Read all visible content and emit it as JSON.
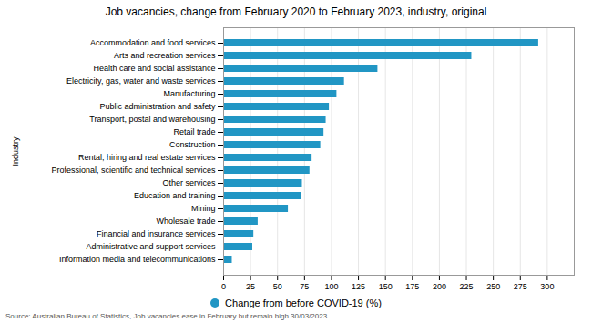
{
  "chart_data": {
    "type": "bar",
    "orientation": "horizontal",
    "title": "Job vacancies, change from February 2020 to February 2023, industry, original",
    "ylabel": "Industry",
    "categories": [
      "Accommodation and food services",
      "Arts and recreation services",
      "Health care and social assistance",
      "Electricity, gas, water and waste services",
      "Manufacturing",
      "Public administration and safety",
      "Transport, postal and warehousing",
      "Retail trade",
      "Construction",
      "Rental, hiring and real estate services",
      "Professional, scientific and technical services",
      "Other services",
      "Education and training",
      "Mining",
      "Wholesale trade",
      "Financial and insurance services",
      "Administrative and support services",
      "Information media and telecommunications"
    ],
    "series": [
      {
        "name": "Change from before COVID-19 (%)",
        "color": "#2196C4",
        "values": [
          292,
          230,
          143,
          112,
          105,
          98,
          95,
          93,
          90,
          82,
          80,
          73,
          72,
          60,
          32,
          28,
          27,
          8
        ]
      }
    ],
    "xlim": [
      0,
      325
    ],
    "xticks": [
      0,
      25,
      50,
      75,
      100,
      125,
      150,
      175,
      200,
      225,
      250,
      275,
      300
    ],
    "grid": true,
    "legend": "bottom",
    "annotations": [
      "Source: Australian Bureau of Statistics, Job vacancies ease in February but remain high 30/03/2023"
    ]
  }
}
